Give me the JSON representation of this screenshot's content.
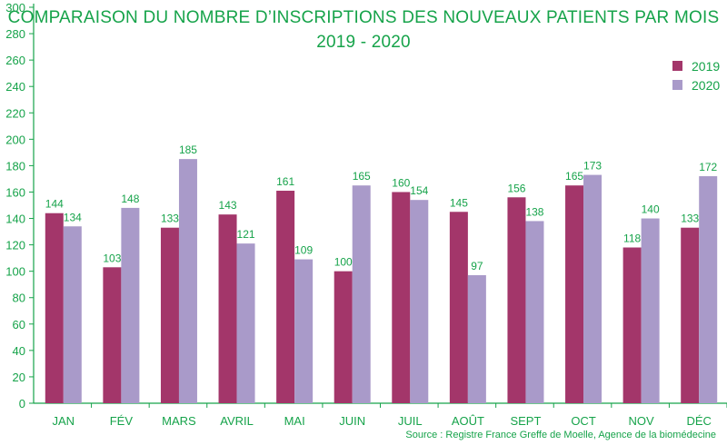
{
  "chart_data": {
    "type": "bar",
    "title": "COMPARAISON DU NOMBRE D’INSCRIPTIONS DES NOUVEAUX PATIENTS PAR MOIS",
    "subtitle": "2019 - 2020",
    "source": "Source : Registre France Greffe de Moelle, Agence de la biomédecine",
    "categories": [
      "JAN",
      "FÉV",
      "MARS",
      "AVRIL",
      "MAI",
      "JUIN",
      "JUIL",
      "AOÛT",
      "SEPT",
      "OCT",
      "NOV",
      "DÉC"
    ],
    "series": [
      {
        "name": "2019",
        "color": "#a3366a",
        "values": [
          144,
          103,
          133,
          143,
          161,
          100,
          160,
          145,
          156,
          165,
          118,
          133
        ]
      },
      {
        "name": "2020",
        "color": "#a99ac9",
        "values": [
          134,
          148,
          185,
          121,
          109,
          165,
          154,
          97,
          138,
          173,
          140,
          172
        ]
      }
    ],
    "ylim": [
      0,
      300
    ],
    "yticks": [
      0,
      20,
      40,
      60,
      80,
      100,
      120,
      140,
      160,
      180,
      200,
      220,
      240,
      260,
      280,
      300
    ],
    "grid": false,
    "legend_position": "top-right",
    "text_color": "#16a34a"
  }
}
